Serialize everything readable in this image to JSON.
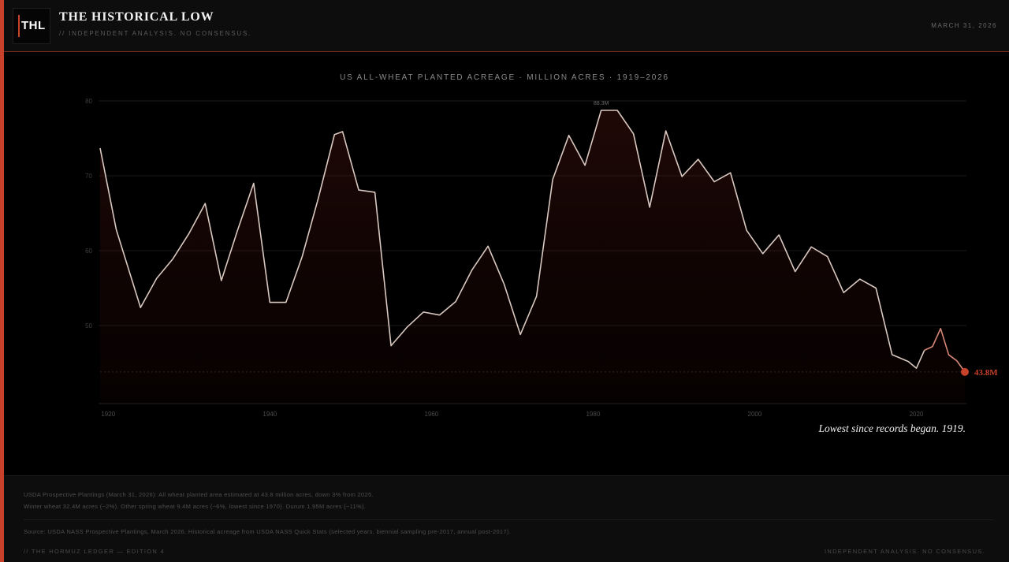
{
  "brand": {
    "logo_text": "THL",
    "title": "THE HISTORICAL LOW",
    "tagline": "// INDEPENDENT ANALYSIS. NO CONSENSUS."
  },
  "header": {
    "date": "MARCH 31, 2026"
  },
  "colors": {
    "accent": "#c8412a",
    "line": "#d9c8c0",
    "background": "#000000"
  },
  "chart_data": {
    "type": "line",
    "title": "US ALL-WHEAT PLANTED ACREAGE · MILLION ACRES · 1919–2026",
    "xlabel": "",
    "ylabel": "",
    "xlim": [
      1919,
      2026
    ],
    "ylim": [
      40,
      80
    ],
    "x_ticks": [
      1920,
      1940,
      1960,
      1980,
      2000,
      2020
    ],
    "y_ticks": [
      50,
      60,
      70,
      80
    ],
    "grid": true,
    "series": [
      {
        "x": [
          1919,
          1921,
          1924,
          1926,
          1928,
          1930,
          1932,
          1934,
          1936,
          1938,
          1940,
          1942,
          1944,
          1946,
          1948,
          1949,
          1951,
          1953,
          1955,
          1957,
          1959,
          1961,
          1963,
          1965,
          1967,
          1969,
          1971,
          1973,
          1975,
          1977,
          1979,
          1981,
          1983,
          1985,
          1987,
          1989,
          1991,
          1993,
          1995,
          1997,
          1999,
          2001,
          2003,
          2005,
          2007,
          2009,
          2011,
          2013,
          2015,
          2017,
          2019,
          2020,
          2021,
          2022,
          2023,
          2024,
          2025,
          2026
        ],
        "y": [
          73.7,
          62.8,
          52.4,
          56.3,
          58.9,
          62.3,
          66.3,
          56.0,
          62.7,
          69.0,
          53.1,
          53.1,
          59.2,
          67.0,
          75.5,
          75.9,
          68.1,
          67.8,
          47.3,
          49.8,
          51.8,
          51.4,
          53.2,
          57.4,
          60.6,
          55.5,
          48.8,
          53.9,
          69.5,
          75.4,
          71.4,
          88.3,
          80.9,
          75.6,
          65.8,
          76.0,
          69.9,
          72.2,
          69.2,
          70.4,
          62.7,
          59.6,
          62.1,
          57.2,
          60.5,
          59.2,
          54.4,
          56.2,
          55.0,
          46.1,
          45.2,
          44.3,
          46.7,
          47.2,
          49.6,
          46.1,
          45.3,
          43.8
        ]
      }
    ],
    "annotations": {
      "peak_label": "88.3M",
      "last_label": "43.8M",
      "note": "Lowest since records began. 1919."
    }
  },
  "footer": {
    "line1": "USDA Prospective Plantings (March 31, 2026): All wheat planted area estimated at 43.8 million acres, down 3% from 2025.",
    "line2": "Winter wheat 32.4M acres (−2%). Other spring wheat 9.4M acres (−6%, lowest since 1970). Durum 1.95M acres (−11%).",
    "source": "Source: USDA NASS Prospective Plantings, March 2026. Historical acreage from USDA NASS Quick Stats (selected years, biennial sampling pre-2017, annual post-2017).",
    "edition": "// THE HORMUZ LEDGER — EDITION 4",
    "tagline": "INDEPENDENT ANALYSIS. NO CONSENSUS."
  }
}
